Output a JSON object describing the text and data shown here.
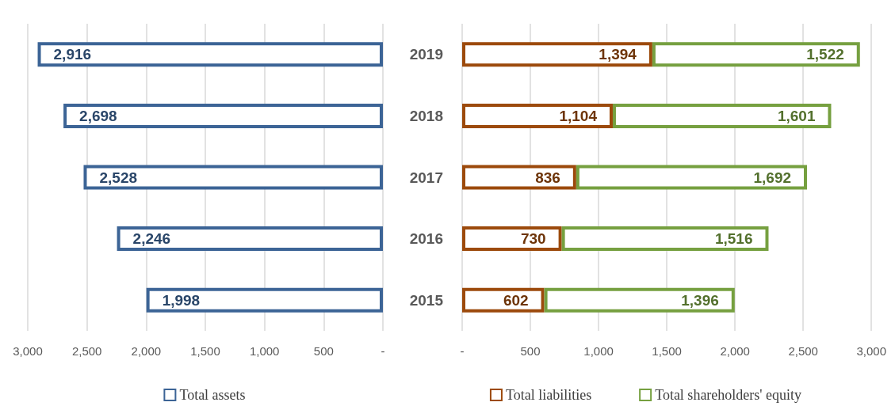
{
  "chart_data": [
    {
      "type": "bar",
      "orientation": "horizontal",
      "categories": [
        "2019",
        "2018",
        "2017",
        "2016",
        "2015"
      ],
      "series": [
        {
          "name": "Total assets",
          "color": "#3c6496",
          "values": [
            2916,
            2698,
            2528,
            2246,
            1998
          ],
          "value_labels": [
            "2,916",
            "2,698",
            "2,528",
            "2,246",
            "1,998"
          ]
        }
      ],
      "xlim": [
        3000,
        0
      ],
      "xticks": [
        {
          "value": 3000,
          "label": "3,000"
        },
        {
          "value": 2500,
          "label": "2,500"
        },
        {
          "value": 2000,
          "label": "2,000"
        },
        {
          "value": 1500,
          "label": "1,500"
        },
        {
          "value": 1000,
          "label": "1,000"
        },
        500,
        {
          "value": 0,
          "label": "-"
        }
      ],
      "grid": "x",
      "legend": "bottom",
      "tick_labels": "x"
    },
    {
      "type": "bar",
      "orientation": "horizontal",
      "stacked": true,
      "categories": [
        "2019",
        "2018",
        "2017",
        "2016",
        "2015"
      ],
      "series": [
        {
          "name": "Total liabilities",
          "color": "#9c4a0c",
          "values": [
            1394,
            1104,
            836,
            730,
            602
          ],
          "value_labels": [
            "1,394",
            "1,104",
            "836",
            "730",
            "602"
          ]
        },
        {
          "name": "Total shareholders' equity",
          "color": "#76a040",
          "values": [
            1522,
            1601,
            1692,
            1516,
            1396
          ],
          "value_labels": [
            "1,522",
            "1,601",
            "1,692",
            "1,516",
            "1,396"
          ]
        }
      ],
      "xlim": [
        0,
        3000
      ],
      "xticks": [
        {
          "value": 0,
          "label": "-"
        },
        500,
        {
          "value": 1000,
          "label": "1,000"
        },
        {
          "value": 1500,
          "label": "1,500"
        },
        {
          "value": 2000,
          "label": "2,000"
        },
        {
          "value": 2500,
          "label": "2,500"
        },
        {
          "value": 3000,
          "label": "3,000"
        }
      ],
      "grid": "x",
      "legend": "bottom"
    }
  ]
}
